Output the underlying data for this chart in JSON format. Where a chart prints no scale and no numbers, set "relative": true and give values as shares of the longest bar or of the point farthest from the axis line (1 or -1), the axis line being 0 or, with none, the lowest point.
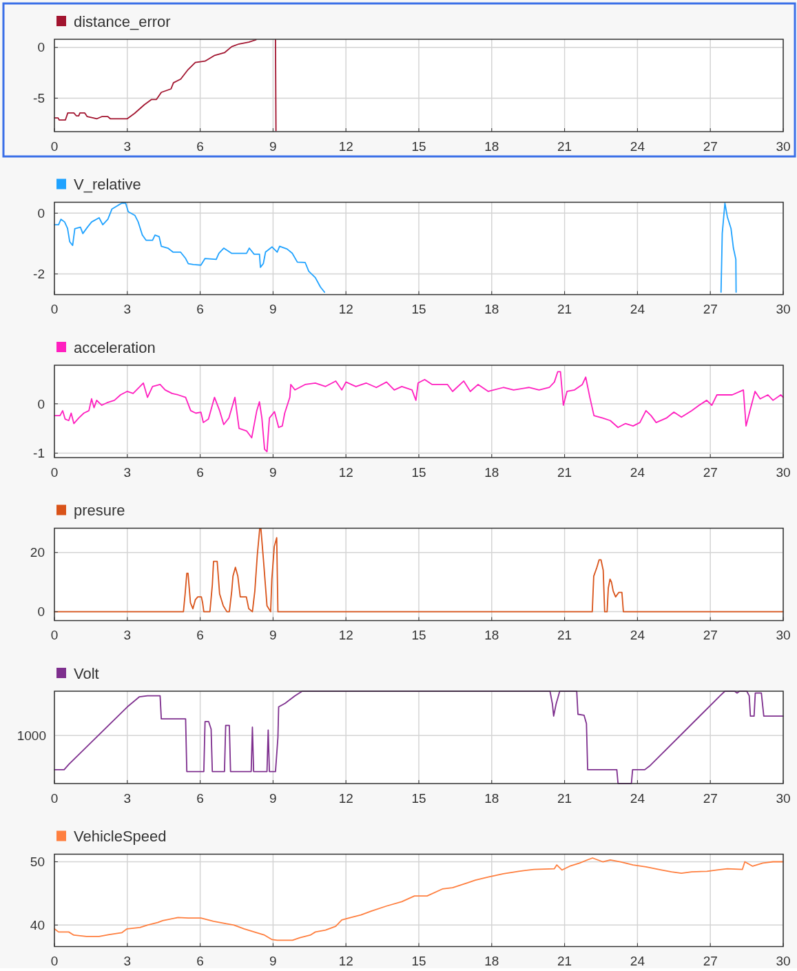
{
  "chart_data": [
    {
      "type": "line",
      "xlim": [
        0,
        30
      ],
      "xticks": [
        0,
        3,
        6,
        9,
        12,
        15,
        18,
        21,
        24,
        27,
        30
      ],
      "ylim": [
        -8.3,
        0.8
      ],
      "yticks": [
        -5,
        0
      ],
      "grid": true,
      "legend": "top left",
      "series": [
        {
          "name": "distance_error",
          "color": "#a2142f",
          "x": [
            0,
            0.15,
            0.2,
            0.45,
            0.55,
            0.8,
            0.9,
            1.0,
            1.05,
            1.25,
            1.35,
            1.6,
            1.75,
            1.95,
            2.2,
            2.3,
            3.0,
            3.3,
            3.7,
            4.0,
            4.2,
            4.4,
            4.8,
            4.9,
            5.2,
            5.5,
            5.8,
            6.2,
            6.6,
            7.0,
            7.3,
            7.6,
            8.0,
            8.3,
            8.7,
            9.1,
            9.12
          ],
          "values": [
            -6.95,
            -6.95,
            -7.16,
            -7.16,
            -6.46,
            -6.46,
            -6.74,
            -6.74,
            -6.46,
            -6.46,
            -6.82,
            -6.95,
            -7.03,
            -6.82,
            -6.82,
            -7.03,
            -7.03,
            -6.5,
            -5.65,
            -5.13,
            -5.13,
            -4.43,
            -4.09,
            -3.49,
            -3.12,
            -2.19,
            -1.48,
            -1.35,
            -0.78,
            -0.52,
            0.08,
            0.34,
            0.52,
            0.75,
            null,
            0.75,
            -8.2
          ]
        }
      ]
    },
    {
      "type": "line",
      "xlim": [
        0,
        30
      ],
      "xticks": [
        0,
        3,
        6,
        9,
        12,
        15,
        18,
        21,
        24,
        27,
        30
      ],
      "ylim": [
        -2.68,
        0.36
      ],
      "yticks": [
        -2,
        0
      ],
      "grid": true,
      "legend": "top left",
      "series": [
        {
          "name": "V_relative",
          "color": "#1fa2ff",
          "x": [
            0,
            0.17,
            0.27,
            0.42,
            0.54,
            0.63,
            0.75,
            0.84,
            1.07,
            1.17,
            1.36,
            1.53,
            1.84,
            1.99,
            2.2,
            2.37,
            2.62,
            2.78,
            2.93,
            3.04,
            3.31,
            3.45,
            3.62,
            3.77,
            4.04,
            4.14,
            4.31,
            4.4,
            4.67,
            4.88,
            5.19,
            5.4,
            5.51,
            5.72,
            6.03,
            6.2,
            6.66,
            6.77,
            6.97,
            7.29,
            7.91,
            8.02,
            8.22,
            8.44,
            8.48,
            8.6,
            8.69,
            8.96,
            9.17,
            9.27,
            9.58,
            9.79,
            10.0,
            10.32,
            10.47,
            10.74,
            10.95,
            11.12,
            20,
            27.44,
            27.49,
            27.6,
            27.7,
            27.85,
            27.95,
            28.05,
            28.06
          ],
          "values": [
            -0.38,
            -0.38,
            -0.2,
            -0.29,
            -0.5,
            -0.94,
            -1.06,
            -0.51,
            -0.46,
            -0.67,
            -0.46,
            -0.29,
            -0.15,
            -0.38,
            -0.2,
            0.14,
            0.26,
            0.33,
            0.33,
            0.05,
            -0.07,
            -0.29,
            -0.72,
            -0.89,
            -0.89,
            -0.72,
            -0.77,
            -1.09,
            -1.15,
            -1.28,
            -1.28,
            -1.49,
            -1.66,
            -1.69,
            -1.71,
            -1.49,
            -1.52,
            -1.32,
            -1.15,
            -1.32,
            -1.32,
            -1.15,
            -1.35,
            -1.35,
            -1.78,
            -1.66,
            -1.28,
            -1.11,
            -1.28,
            -1.09,
            -1.18,
            -1.32,
            -1.61,
            -1.62,
            -1.91,
            -2.12,
            -2.43,
            -2.6,
            null,
            -2.6,
            -0.67,
            0.33,
            -0.12,
            -0.5,
            -1.15,
            -1.52,
            -2.6
          ]
        }
      ]
    },
    {
      "type": "line",
      "xlim": [
        0,
        30
      ],
      "xticks": [
        0,
        3,
        6,
        9,
        12,
        15,
        18,
        21,
        24,
        27,
        30
      ],
      "ylim": [
        -1.09,
        0.78
      ],
      "yticks": [
        -1,
        0
      ],
      "grid": true,
      "legend": "top left",
      "series": [
        {
          "name": "acceleration",
          "color": "#ff1fbf",
          "x": [
            0,
            0.23,
            0.34,
            0.44,
            0.59,
            0.69,
            0.8,
            1.0,
            1.21,
            1.42,
            1.53,
            1.63,
            1.74,
            1.95,
            2.16,
            2.47,
            2.72,
            2.99,
            3.24,
            3.52,
            3.66,
            3.83,
            4.04,
            4.35,
            4.56,
            4.84,
            5.09,
            5.4,
            5.61,
            5.82,
            6.03,
            6.13,
            6.34,
            6.59,
            6.8,
            6.97,
            7.18,
            7.43,
            7.6,
            7.91,
            8.12,
            8.33,
            8.44,
            8.54,
            8.65,
            8.75,
            8.85,
            9.06,
            9.23,
            9.38,
            9.48,
            9.69,
            9.73,
            9.9,
            10.32,
            10.74,
            11.16,
            11.58,
            11.83,
            12.0,
            12.41,
            12.83,
            13.25,
            13.67,
            13.99,
            14.3,
            14.72,
            14.88,
            14.97,
            15.24,
            15.55,
            16.18,
            16.39,
            16.85,
            17.12,
            17.44,
            17.86,
            18.48,
            18.9,
            19.53,
            19.95,
            20.37,
            20.58,
            20.72,
            20.83,
            20.95,
            21.1,
            21.41,
            21.73,
            21.87,
            22.04,
            22.21,
            22.57,
            22.88,
            23.2,
            23.51,
            23.82,
            24.1,
            24.35,
            24.56,
            24.77,
            25.19,
            25.5,
            25.81,
            26.23,
            26.54,
            26.85,
            27.06,
            27.27,
            27.9,
            28.36,
            28.47,
            28.63,
            28.84,
            29.05,
            29.37,
            29.58,
            29.9,
            30
          ],
          "values": [
            -0.24,
            -0.24,
            -0.14,
            -0.31,
            -0.34,
            -0.19,
            -0.4,
            -0.29,
            -0.19,
            -0.14,
            0.1,
            -0.08,
            0.07,
            -0.03,
            0.02,
            0.07,
            0.18,
            0.25,
            0.21,
            0.35,
            0.42,
            0.13,
            0.35,
            0.39,
            0.28,
            0.21,
            0.18,
            0.13,
            -0.14,
            -0.19,
            -0.17,
            -0.38,
            -0.31,
            0.13,
            -0.14,
            -0.42,
            -0.29,
            0.13,
            -0.5,
            -0.55,
            -0.69,
            -0.14,
            0.04,
            -0.29,
            -0.92,
            -0.97,
            -0.29,
            -0.16,
            -0.48,
            -0.45,
            -0.19,
            0.13,
            0.39,
            0.28,
            0.39,
            0.42,
            0.35,
            0.46,
            0.28,
            0.44,
            0.35,
            0.42,
            0.33,
            0.44,
            0.28,
            0.35,
            0.28,
            0.07,
            0.42,
            0.49,
            0.39,
            0.39,
            0.25,
            0.46,
            0.25,
            0.39,
            0.25,
            0.33,
            0.28,
            0.33,
            0.28,
            0.33,
            0.44,
            0.65,
            0.65,
            -0.03,
            0.25,
            0.28,
            0.39,
            0.54,
            0.13,
            -0.24,
            -0.29,
            -0.34,
            -0.48,
            -0.4,
            -0.45,
            -0.38,
            -0.14,
            -0.24,
            -0.38,
            -0.29,
            -0.17,
            -0.27,
            -0.14,
            -0.03,
            0.07,
            -0.03,
            0.18,
            0.18,
            0.28,
            -0.45,
            -0.14,
            0.25,
            0.1,
            0.18,
            0.07,
            0.18,
            0.13
          ]
        }
      ]
    },
    {
      "type": "line",
      "xlim": [
        0,
        30
      ],
      "xticks": [
        0,
        3,
        6,
        9,
        12,
        15,
        18,
        21,
        24,
        27,
        30
      ],
      "ylim": [
        -3,
        28.2
      ],
      "yticks": [
        0,
        20
      ],
      "grid": true,
      "legend": "top left",
      "series": [
        {
          "name": "presure",
          "color": "#d95319",
          "x": [
            0,
            5.31,
            5.38,
            5.45,
            5.5,
            5.6,
            5.7,
            5.8,
            5.9,
            6.05,
            6.1,
            6.15,
            6.4,
            6.5,
            6.55,
            6.7,
            6.8,
            6.95,
            7.1,
            7.2,
            7.3,
            7.35,
            7.45,
            7.55,
            7.65,
            7.9,
            8.0,
            8.15,
            8.25,
            8.35,
            8.45,
            8.5,
            8.6,
            8.75,
            8.9,
            8.95,
            9.05,
            9.15,
            9.2,
            22.14,
            22.2,
            22.33,
            22.42,
            22.5,
            22.59,
            22.65,
            22.75,
            22.8,
            22.87,
            22.93,
            23.0,
            23.1,
            23.23,
            23.36,
            23.42,
            30
          ],
          "values": [
            0,
            0,
            6,
            13,
            13,
            3,
            1,
            4,
            5,
            5,
            3,
            0,
            0,
            9,
            17,
            17,
            6,
            2,
            0,
            0,
            7,
            12,
            15,
            12,
            5,
            5,
            1,
            0,
            7,
            19,
            28,
            28,
            18,
            2,
            0,
            11,
            22,
            25,
            0,
            0,
            12,
            15,
            17.5,
            17.5,
            14,
            0,
            0,
            8,
            11,
            10,
            7,
            5,
            6.5,
            6.5,
            0,
            0
          ]
        }
      ]
    },
    {
      "type": "line",
      "xlim": [
        0,
        30
      ],
      "xticks": [
        0,
        3,
        6,
        9,
        12,
        15,
        18,
        21,
        24,
        27,
        30
      ],
      "relative": true,
      "grid": true,
      "legend": "top left",
      "annotations": [
        "1000"
      ],
      "series": [
        {
          "name": "Volt",
          "color": "#7e2f8e",
          "x": [
            0,
            0.4,
            0.6,
            3.0,
            3.5,
            3.83,
            4.35,
            4.4,
            5.4,
            5.45,
            6.15,
            6.2,
            6.35,
            6.45,
            6.5,
            7.0,
            7.05,
            7.2,
            7.25,
            8.1,
            8.15,
            8.2,
            8.75,
            8.8,
            8.85,
            9.1,
            9.2,
            9.23,
            9.5,
            9.9,
            10.2,
            20.4,
            20.5,
            20.55,
            20.65,
            20.8,
            21.5,
            21.55,
            21.8,
            21.9,
            21.95,
            23.15,
            23.2,
            23.75,
            23.8,
            24.3,
            24.5,
            27.4,
            27.6,
            28.0,
            28.1,
            28.2,
            28.5,
            28.6,
            28.65,
            28.8,
            28.85,
            29.1,
            29.2,
            30
          ],
          "values": [
            0.15,
            0.15,
            0.21,
            0.83,
            0.94,
            0.95,
            0.95,
            0.7,
            0.7,
            0.13,
            0.13,
            0.67,
            0.67,
            0.59,
            0.13,
            0.13,
            0.63,
            0.63,
            0.13,
            0.13,
            0.61,
            0.13,
            0.13,
            0.58,
            0.13,
            0.13,
            0.5,
            0.83,
            0.87,
            0.95,
            1,
            1,
            0.86,
            0.73,
            0.86,
            1,
            1,
            0.75,
            0.74,
            0.65,
            0.15,
            0.15,
            0,
            0,
            0.15,
            0.15,
            0.19,
            0.95,
            1,
            1,
            0.98,
            1,
            1,
            0.95,
            0.73,
            0.73,
            0.98,
            0.98,
            0.73,
            0.73
          ]
        }
      ]
    },
    {
      "type": "line",
      "xlim": [
        0,
        30
      ],
      "xticks": [
        0,
        3,
        6,
        9,
        12,
        15,
        18,
        21,
        24,
        27,
        30
      ],
      "ylim": [
        36.6,
        51.2
      ],
      "yticks": [
        40,
        50
      ],
      "grid": true,
      "legend": "top left",
      "series": [
        {
          "name": "VehicleSpeed",
          "color": "#ff7f3f",
          "x": [
            0,
            0.17,
            0.59,
            0.8,
            1.32,
            1.84,
            2.26,
            2.78,
            2.99,
            3.52,
            3.83,
            4.25,
            4.46,
            5.09,
            5.51,
            6.03,
            6.55,
            7.08,
            7.39,
            7.81,
            8.23,
            8.65,
            8.96,
            9.17,
            9.8,
            10.11,
            10.53,
            10.74,
            11.16,
            11.58,
            11.83,
            12.2,
            12.62,
            13.04,
            13.67,
            14.3,
            14.82,
            15.34,
            15.97,
            16.39,
            17.02,
            17.33,
            17.86,
            18.48,
            19.11,
            19.74,
            20.58,
            20.68,
            20.89,
            21.21,
            21.62,
            21.94,
            22.15,
            22.36,
            22.57,
            22.88,
            23.3,
            23.82,
            24.35,
            24.98,
            25.4,
            25.81,
            26.23,
            26.86,
            27.28,
            27.7,
            28.32,
            28.42,
            28.74,
            29.16,
            29.58,
            30
          ],
          "values": [
            39.4,
            38.9,
            38.9,
            38.4,
            38.2,
            38.2,
            38.5,
            38.8,
            39.4,
            39.6,
            40.0,
            40.4,
            40.7,
            41.2,
            41.1,
            41.1,
            40.6,
            40.2,
            40.0,
            39.4,
            38.9,
            38.4,
            37.7,
            37.6,
            37.6,
            38.0,
            38.4,
            38.9,
            39.2,
            39.8,
            40.8,
            41.2,
            41.6,
            42.2,
            43.0,
            43.7,
            44.6,
            44.6,
            45.7,
            45.9,
            46.7,
            47.1,
            47.6,
            48.1,
            48.5,
            48.8,
            48.9,
            49.5,
            48.7,
            49.3,
            49.8,
            50.3,
            50.6,
            50.3,
            50.0,
            50.3,
            50.0,
            49.5,
            49.2,
            48.7,
            48.4,
            48.2,
            48.4,
            48.5,
            48.7,
            48.9,
            48.8,
            50.0,
            49.3,
            49.8,
            50.0,
            50.0
          ]
        }
      ]
    }
  ]
}
